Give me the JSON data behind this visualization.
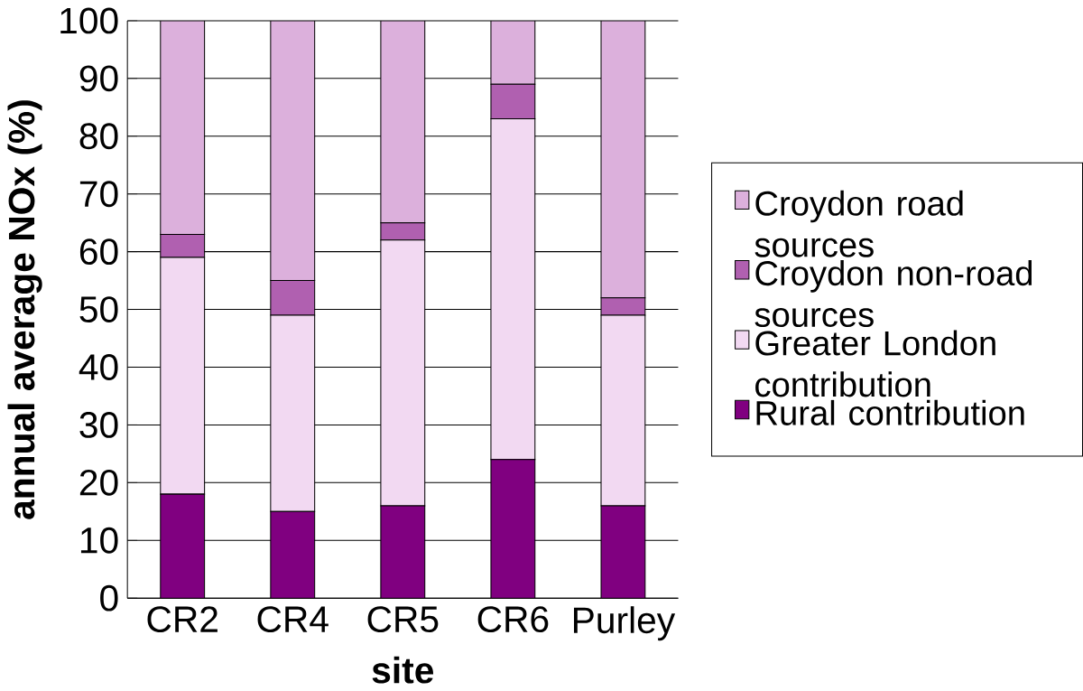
{
  "chart_data": {
    "type": "bar",
    "stacked": true,
    "xlabel": "site",
    "ylabel": "annual average NOx (%)",
    "categories": [
      "CR2",
      "CR4",
      "CR5",
      "CR6",
      "Purley"
    ],
    "series": [
      {
        "name": "Rural contribution",
        "color": "#800080",
        "values": [
          18,
          15,
          16,
          24,
          16
        ]
      },
      {
        "name": "Greater London contribution",
        "color": "#f2d9f2",
        "values": [
          41,
          34,
          46,
          59,
          33
        ]
      },
      {
        "name": "Croydon non-road sources",
        "color": "#b060b0",
        "values": [
          4,
          6,
          3,
          6,
          3
        ]
      },
      {
        "name": "Croydon road sources",
        "color": "#dcb0dc",
        "values": [
          37,
          45,
          35,
          11,
          48
        ]
      }
    ],
    "ylim": [
      0,
      100
    ],
    "yticks": [
      0,
      10,
      20,
      30,
      40,
      50,
      60,
      70,
      80,
      90,
      100
    ],
    "grid": "y",
    "legend": "right"
  }
}
